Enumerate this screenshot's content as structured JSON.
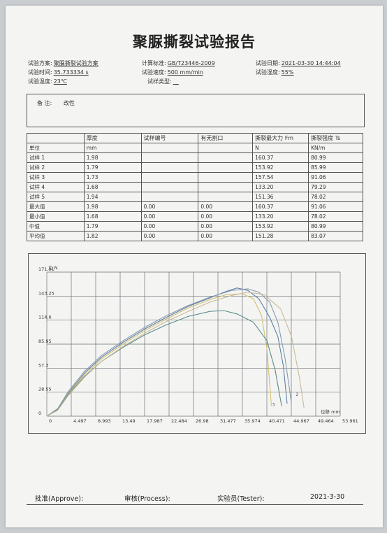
{
  "report": {
    "title": "聚脲撕裂试验报告"
  },
  "info": {
    "plan_label": "试验方案:",
    "plan_value": "聚脲撕裂试验方案",
    "standard_label": "计算标准:",
    "standard_value": "GB/T23446-2009",
    "date_label": "试验日期:",
    "date_value": "2021-03-30 14:44:04",
    "time_label": "试验时间:",
    "time_value": "35.733334 s",
    "speed_label": "试验速度:",
    "speed_value": "500 mm/min",
    "humidity_label": "试验湿度:",
    "humidity_value": "55%",
    "temp_label": "试验温度:",
    "temp_value": "23℃",
    "type_label": "试样类型:",
    "type_value": "__"
  },
  "remark": {
    "label": "备  注:",
    "value": "改性"
  },
  "table": {
    "headers": [
      "",
      "厚度",
      "试样编号",
      "有无割口",
      "撕裂最大力 Fm",
      "撕裂强度 Ts"
    ],
    "units": [
      "单位",
      "mm",
      "",
      "",
      "N",
      "KN/m"
    ],
    "rows": [
      [
        "试样 1",
        "1.98",
        "",
        "",
        "160.37",
        "80.99"
      ],
      [
        "试样 2",
        "1.79",
        "",
        "",
        "153.92",
        "85.99"
      ],
      [
        "试样 3",
        "1.73",
        "",
        "",
        "157.54",
        "91.06"
      ],
      [
        "试样 4",
        "1.68",
        "",
        "",
        "133.20",
        "79.29"
      ],
      [
        "试样 5",
        "1.94",
        "",
        "",
        "151.36",
        "78.02"
      ],
      [
        "最大值",
        "1.98",
        "0.00",
        "0.00",
        "160.37",
        "91.06"
      ],
      [
        "最小值",
        "1.68",
        "0.00",
        "0.00",
        "133.20",
        "78.02"
      ],
      [
        "中值",
        "1.79",
        "0.00",
        "0.00",
        "153.92",
        "80.99"
      ],
      [
        "平均值",
        "1.82",
        "0.00",
        "0.00",
        "151.28",
        "83.07"
      ]
    ]
  },
  "chart_data": {
    "type": "line",
    "ylabel": "力 N",
    "xlabel": "位移 mm",
    "ylim": [
      0,
      171.91
    ],
    "xlim": [
      0,
      53.961
    ],
    "y_ticks": [
      "0",
      "28.55",
      "57.3",
      "85.95",
      "114.6",
      "143.25",
      "171.91"
    ],
    "x_ticks": [
      "0",
      "4.497",
      "8.993",
      "13.49",
      "17.987",
      "22.484",
      "26.98",
      "31.477",
      "35.974",
      "40.471",
      "44.967",
      "49.464",
      "53.961"
    ],
    "grid": true,
    "series": [
      {
        "color": "#5f7ea8",
        "x": [
          0,
          2,
          4,
          7,
          10,
          14,
          18,
          22,
          26,
          30,
          33,
          35,
          37,
          39,
          41,
          42.5,
          43.5,
          44.2
        ],
        "y": [
          0,
          8,
          28,
          52,
          70,
          88,
          104,
          118,
          131,
          141,
          149,
          153,
          150,
          140,
          118,
          95,
          60,
          15
        ]
      },
      {
        "color": "#8a9bb0",
        "x": [
          0,
          2,
          4,
          7,
          10,
          14,
          18,
          22,
          26,
          30,
          34,
          37,
          39,
          41,
          42.5,
          43.8,
          45
        ],
        "y": [
          0,
          9,
          30,
          54,
          72,
          90,
          106,
          120,
          132,
          142,
          150,
          152,
          148,
          136,
          112,
          70,
          15
        ]
      },
      {
        "color": "#d4c070",
        "x": [
          0,
          2,
          4,
          7,
          10,
          14,
          18,
          22,
          26,
          30,
          33,
          36,
          38,
          39.5,
          40.5,
          41.3
        ],
        "y": [
          0,
          8,
          27,
          50,
          68,
          86,
          102,
          116,
          129,
          139,
          145,
          146,
          140,
          120,
          80,
          12
        ]
      },
      {
        "color": "#5a8c8c",
        "x": [
          0,
          2,
          4,
          7,
          10,
          14,
          18,
          22,
          26,
          30,
          32.5,
          35,
          38,
          40.5,
          42,
          43.2
        ],
        "y": [
          0,
          8,
          26,
          48,
          65,
          82,
          97,
          109,
          119,
          125,
          126,
          122,
          112,
          90,
          55,
          12
        ]
      },
      {
        "color": "#c9b99a",
        "x": [
          0,
          2,
          4,
          7,
          10,
          14,
          18,
          22,
          26,
          30,
          34,
          37,
          40,
          43,
          45,
          46.5,
          47.3
        ],
        "y": [
          0,
          7,
          25,
          47,
          65,
          83,
          99,
          113,
          125,
          136,
          144,
          148,
          145,
          128,
          95,
          45,
          10
        ]
      }
    ],
    "series_labels": [
      "5",
      "2"
    ]
  },
  "footer": {
    "approve": "批准(Approve):",
    "process": "审核(Process):",
    "tester": "实验员(Tester):",
    "date": "2021-3-30"
  }
}
